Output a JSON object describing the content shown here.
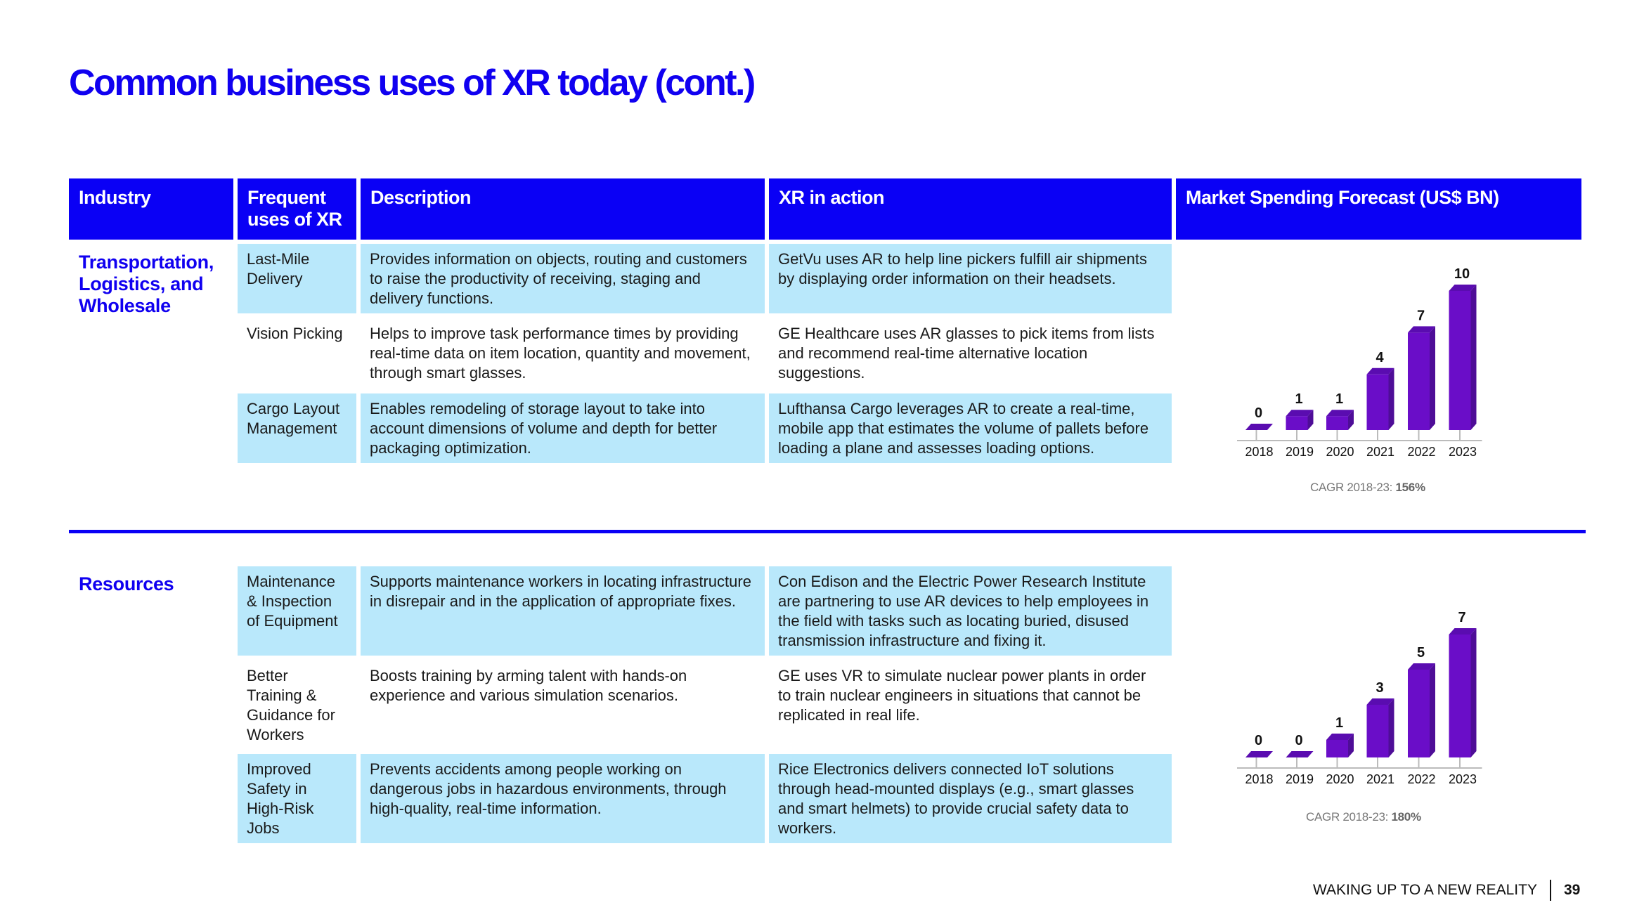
{
  "title": "Common business uses of XR today (cont.)",
  "headers": {
    "industry": "Industry",
    "uses": "Frequent uses of XR",
    "description": "Description",
    "xr": "XR in action",
    "market": "Market Spending Forecast (US$ BN)"
  },
  "sections": [
    {
      "industry": "Transportation, Logistics, and Wholesale",
      "rows": [
        {
          "use": "Last-Mile Delivery",
          "description": "Provides information on objects, routing and customers to raise the productivity of receiving, staging and delivery functions.",
          "xr": "GetVu uses AR to help line pickers fulfill air shipments by displaying order information on their headsets."
        },
        {
          "use": "Vision Picking",
          "description": "Helps to improve task performance times by providing real-time data on item location, quantity and movement, through smart glasses.",
          "xr": "GE Healthcare uses AR glasses to pick items from lists and recommend real-time alternative location suggestions."
        },
        {
          "use": "Cargo Layout Management",
          "description": "Enables remodeling of storage layout to take into account dimensions of volume and depth for better packaging optimization.",
          "xr": "Lufthansa Cargo leverages AR to create a real-time, mobile app that estimates the volume of pallets before loading a plane and assesses loading options."
        }
      ],
      "cagr_label": "CAGR 2018-23:",
      "cagr_value": "156%"
    },
    {
      "industry": "Resources",
      "rows": [
        {
          "use": "Maintenance & Inspection of Equipment",
          "description": "Supports maintenance workers in locating infrastructure in disrepair and in the application of appropriate fixes.",
          "xr": "Con Edison and the Electric Power Research Institute are partnering to use AR devices to help employees in the field with tasks such as locating buried, disused transmission infrastructure and fixing it."
        },
        {
          "use": "Better Training & Guidance for Workers",
          "description": "Boosts training by arming talent with hands-on experience and various simulation scenarios.",
          "xr": "GE uses VR to simulate nuclear power plants in order to train nuclear engineers in situations that cannot be replicated in real life."
        },
        {
          "use": "Improved Safety in High-Risk Jobs",
          "description": "Prevents accidents among people working on dangerous jobs in hazardous environments, through high-quality, real-time information.",
          "xr": "Rice Electronics delivers connected IoT solutions through head-mounted displays (e.g., smart glasses and smart helmets) to provide crucial safety data to workers."
        }
      ],
      "cagr_label": "CAGR 2018-23:",
      "cagr_value": "180%"
    }
  ],
  "chart_data": [
    {
      "type": "bar",
      "title": "Market Spending Forecast (US$ BN) - Transportation, Logistics, and Wholesale",
      "categories": [
        "2018",
        "2019",
        "2020",
        "2021",
        "2022",
        "2023"
      ],
      "values": [
        0,
        1,
        1,
        4,
        7,
        10
      ],
      "ylabel": "US$ BN",
      "color": "#6a0dc8"
    },
    {
      "type": "bar",
      "title": "Market Spending Forecast (US$ BN) - Resources",
      "categories": [
        "2018",
        "2019",
        "2020",
        "2021",
        "2022",
        "2023"
      ],
      "values": [
        0,
        0,
        1,
        3,
        5,
        7
      ],
      "ylabel": "US$ BN",
      "color": "#6a0dc8"
    }
  ],
  "footer": {
    "text": "WAKING UP TO A NEW REALITY",
    "page": "39"
  }
}
